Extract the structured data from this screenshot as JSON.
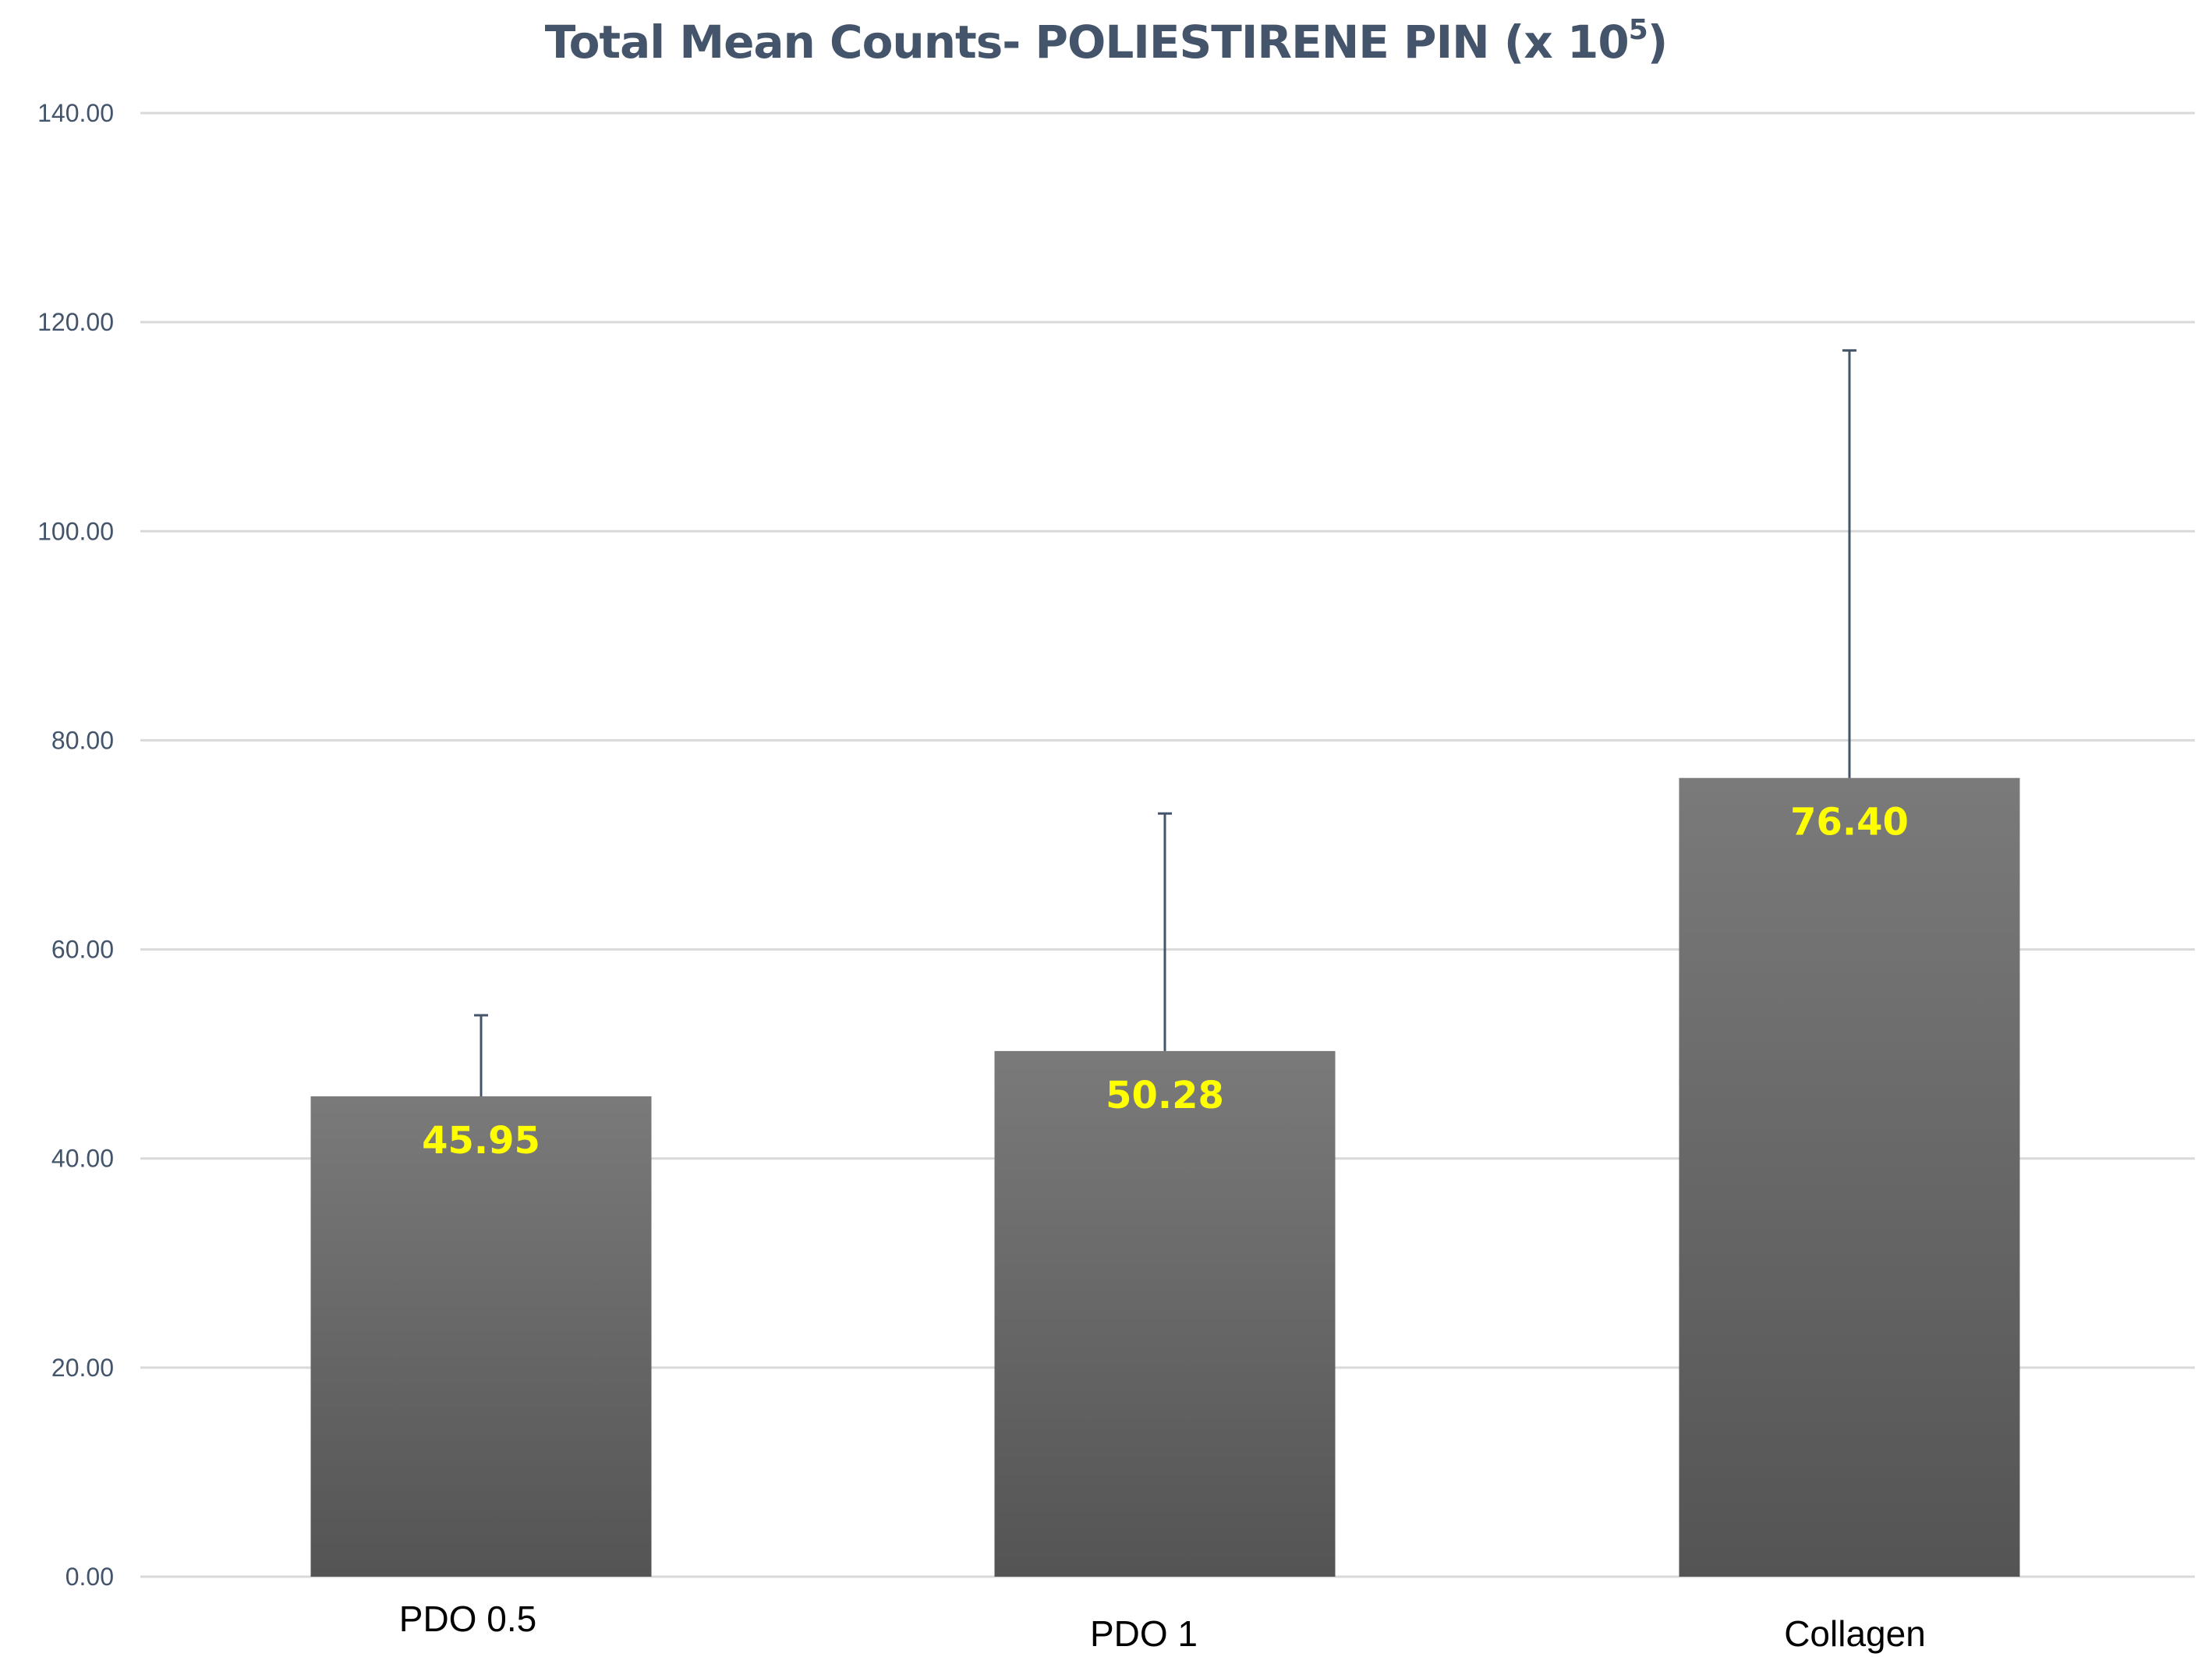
{
  "chart_data": {
    "type": "bar",
    "title": "Total Mean Counts- POLIESTIRENE PIN (x 10",
    "title_superscript": "5",
    "title_suffix": ")",
    "categories": [
      "PDO 0.5",
      "PDO 1",
      "Collagen"
    ],
    "values": [
      45.95,
      50.28,
      76.4
    ],
    "data_labels": [
      "45.95",
      "50.28",
      "76.40"
    ],
    "error_upper": [
      53.7,
      73.0,
      117.3
    ],
    "ylim": [
      0,
      140
    ],
    "yticks": [
      0,
      20,
      40,
      60,
      80,
      100,
      120,
      140
    ],
    "ytick_labels": [
      "0.00",
      "20.00",
      "40.00",
      "60.00",
      "80.00",
      "100.00",
      "120.00",
      "140.00"
    ],
    "xlabel": "",
    "ylabel": "",
    "grid": true,
    "legend": "none",
    "colors": {
      "bar_top": "#7a7a7a",
      "bar_bottom": "#545454",
      "data_label": "#ffff00",
      "error_bar": "#44546a",
      "grid": "#d9d9d9",
      "title": "#44546a"
    }
  }
}
